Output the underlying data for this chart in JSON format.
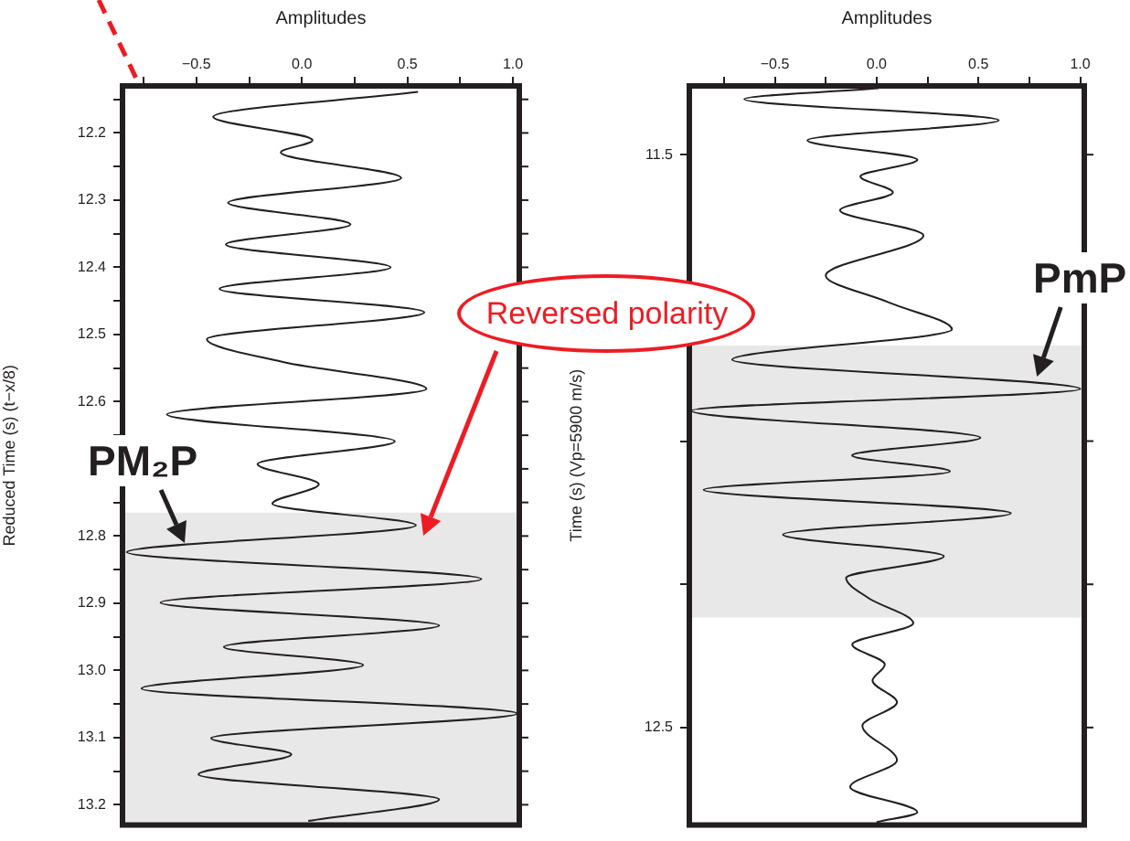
{
  "chart_data": [
    {
      "type": "line",
      "xlabel": "Amplitudes",
      "ylabel": "Reduced Time (s) (t−x/8)",
      "marker": "none",
      "xlim": [
        -0.85,
        1.03
      ],
      "xticks": [
        {
          "value": -0.75,
          "label": null
        },
        {
          "value": -0.5,
          "label": "−0.5"
        },
        {
          "value": -0.25,
          "label": null
        },
        {
          "value": 0,
          "label": "0.0"
        },
        {
          "value": 0.25,
          "label": null
        },
        {
          "value": 0.5,
          "label": "0.5"
        },
        {
          "value": 0.75,
          "label": null
        },
        {
          "value": 1,
          "label": "1.0"
        }
      ],
      "ylim": [
        13.23,
        12.13
      ],
      "yticks": [
        {
          "value": 12.15,
          "label": null
        },
        12.2,
        {
          "value": 12.25,
          "label": null
        },
        12.3,
        {
          "value": 12.35,
          "label": null
        },
        12.4,
        {
          "value": 12.45,
          "label": null
        },
        12.5,
        {
          "value": 12.55,
          "label": null
        },
        12.6,
        {
          "value": 12.65,
          "label": null
        },
        {
          "value": 12.7,
          "label": null
        },
        {
          "value": 12.75,
          "label": null
        },
        12.8,
        {
          "value": 12.85,
          "label": null
        },
        12.9,
        {
          "value": 12.95,
          "label": null
        },
        {
          "value": 13.0,
          "label": "13.0"
        },
        {
          "value": 13.05,
          "label": null
        },
        13.1,
        {
          "value": 13.15,
          "label": null
        },
        13.2
      ],
      "bands": [
        {
          "axis": "y",
          "from": 12.765,
          "to": 13.23,
          "color": "#e8e8e8"
        }
      ],
      "annotations": [
        "PM₂P",
        "Reversed polarity"
      ],
      "series": [
        {
          "color": "#231f20",
          "x": [
            0.55,
            -0.42,
            0.05,
            -0.1,
            0.47,
            -0.35,
            0.23,
            -0.36,
            0.42,
            -0.39,
            0.58,
            -0.45,
            -0.09,
            0.59,
            -0.64,
            0.44,
            -0.21,
            0.08,
            -0.14,
            0.54,
            -0.83,
            0.85,
            -0.67,
            0.65,
            -0.37,
            0.29,
            -0.76,
            1.02,
            -0.43,
            -0.05,
            -0.49,
            0.65,
            0.03
          ],
          "values": [
            12.139,
            12.176,
            12.211,
            12.229,
            12.267,
            12.304,
            12.336,
            12.366,
            12.4,
            12.432,
            12.467,
            12.507,
            12.541,
            12.581,
            12.619,
            12.659,
            12.693,
            12.723,
            12.752,
            12.784,
            12.824,
            12.864,
            12.899,
            12.933,
            12.965,
            12.992,
            13.027,
            13.064,
            13.101,
            13.125,
            13.155,
            13.192,
            13.224
          ]
        }
      ]
    },
    {
      "type": "line",
      "ylabel": "Time (s) (Vp=5900 m/s)",
      "xlabel": "Amplitudes",
      "marker": "none",
      "xlim": [
        -0.92,
        1.02
      ],
      "xticks": [
        {
          "value": -0.75,
          "label": null
        },
        {
          "value": -0.5,
          "label": "−0.5"
        },
        {
          "value": -0.25,
          "label": null
        },
        {
          "value": 0,
          "label": "0.0"
        },
        {
          "value": 0.25,
          "label": null
        },
        {
          "value": 0.5,
          "label": "0.5"
        },
        {
          "value": 0.75,
          "label": null
        },
        {
          "value": 1,
          "label": "1.0"
        }
      ],
      "ylim": [
        12.67,
        11.38
      ],
      "yticks": [
        11.5,
        {
          "value": 11.75,
          "label": null
        },
        {
          "value": 12.0,
          "label": null
        },
        {
          "value": 12.25,
          "label": null
        },
        12.5
      ],
      "bands": [
        {
          "axis": "y",
          "from": 11.833,
          "to": 12.308,
          "color": "#e8e8e8"
        }
      ],
      "annotations": [
        "PmP"
      ],
      "series": [
        {
          "color": "#231f20",
          "x": [
            0.01,
            -0.65,
            0.6,
            -0.34,
            0.2,
            -0.08,
            0.08,
            -0.18,
            0.23,
            -0.25,
            0.06,
            0.37,
            -0.71,
            1.0,
            -0.91,
            0.51,
            -0.12,
            0.36,
            -0.85,
            0.66,
            -0.46,
            0.33,
            -0.15,
            -0.04,
            0.18,
            -0.12,
            0.04,
            -0.02,
            0.1,
            -0.07,
            0.1,
            -0.13,
            0.2,
            0.0
          ],
          "values": [
            11.384,
            11.403,
            11.44,
            11.475,
            11.509,
            11.538,
            11.566,
            11.597,
            11.641,
            11.711,
            11.758,
            11.805,
            11.858,
            11.909,
            11.947,
            11.994,
            12.025,
            12.053,
            12.085,
            12.126,
            12.163,
            12.201,
            12.239,
            12.274,
            12.318,
            12.355,
            12.39,
            12.418,
            12.456,
            12.497,
            12.557,
            12.604,
            12.648,
            12.665
          ]
        }
      ]
    }
  ]
}
